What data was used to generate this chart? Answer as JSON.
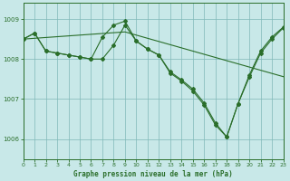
{
  "title": "Graphe pression niveau de la mer (hPa)",
  "bg_color": "#c8e8e8",
  "grid_color": "#80b8b8",
  "line_color": "#2a6e2a",
  "xlim": [
    0,
    23
  ],
  "ylim": [
    1005.5,
    1009.4
  ],
  "yticks": [
    1006,
    1007,
    1008,
    1009
  ],
  "xticks": [
    0,
    1,
    2,
    3,
    4,
    5,
    6,
    7,
    8,
    9,
    10,
    11,
    12,
    13,
    14,
    15,
    16,
    17,
    18,
    19,
    20,
    21,
    22,
    23
  ],
  "line1_x": [
    0,
    1,
    2,
    3,
    4,
    5,
    6,
    7,
    8,
    9,
    10,
    11,
    12,
    13,
    14,
    15,
    16,
    17,
    18,
    19,
    20,
    21,
    22,
    23
  ],
  "line1_y": [
    1008.5,
    1008.52,
    1008.54,
    1008.56,
    1008.58,
    1008.6,
    1008.62,
    1008.64,
    1008.66,
    1008.68,
    1008.6,
    1008.52,
    1008.44,
    1008.36,
    1008.28,
    1008.2,
    1008.12,
    1008.04,
    1007.96,
    1007.88,
    1007.8,
    1007.72,
    1007.64,
    1007.56
  ],
  "line2_x": [
    0,
    1,
    2,
    3,
    4,
    5,
    6,
    7,
    8,
    9,
    10,
    11,
    12,
    13,
    14,
    15,
    16,
    17,
    18,
    19,
    20,
    21,
    22,
    23
  ],
  "line2_y": [
    1008.5,
    1008.65,
    1008.2,
    1008.15,
    1008.1,
    1008.05,
    1008.0,
    1008.0,
    1008.35,
    1008.85,
    1008.45,
    1008.25,
    1008.1,
    1007.65,
    1007.45,
    1007.2,
    1006.85,
    1006.35,
    1006.05,
    1006.88,
    1007.55,
    1008.15,
    1008.5,
    1008.78
  ],
  "line3_x": [
    0,
    1,
    2,
    3,
    4,
    5,
    6,
    7,
    8,
    9,
    10,
    11,
    12,
    13,
    14,
    15,
    16,
    17,
    18,
    19,
    20,
    21,
    22,
    23
  ],
  "line3_y": [
    1008.5,
    1008.65,
    1008.2,
    1008.15,
    1008.1,
    1008.05,
    1008.0,
    1008.55,
    1008.85,
    1008.95,
    1008.45,
    1008.25,
    1008.1,
    1007.68,
    1007.48,
    1007.25,
    1006.9,
    1006.4,
    1006.05,
    1006.88,
    1007.6,
    1008.2,
    1008.55,
    1008.8
  ]
}
